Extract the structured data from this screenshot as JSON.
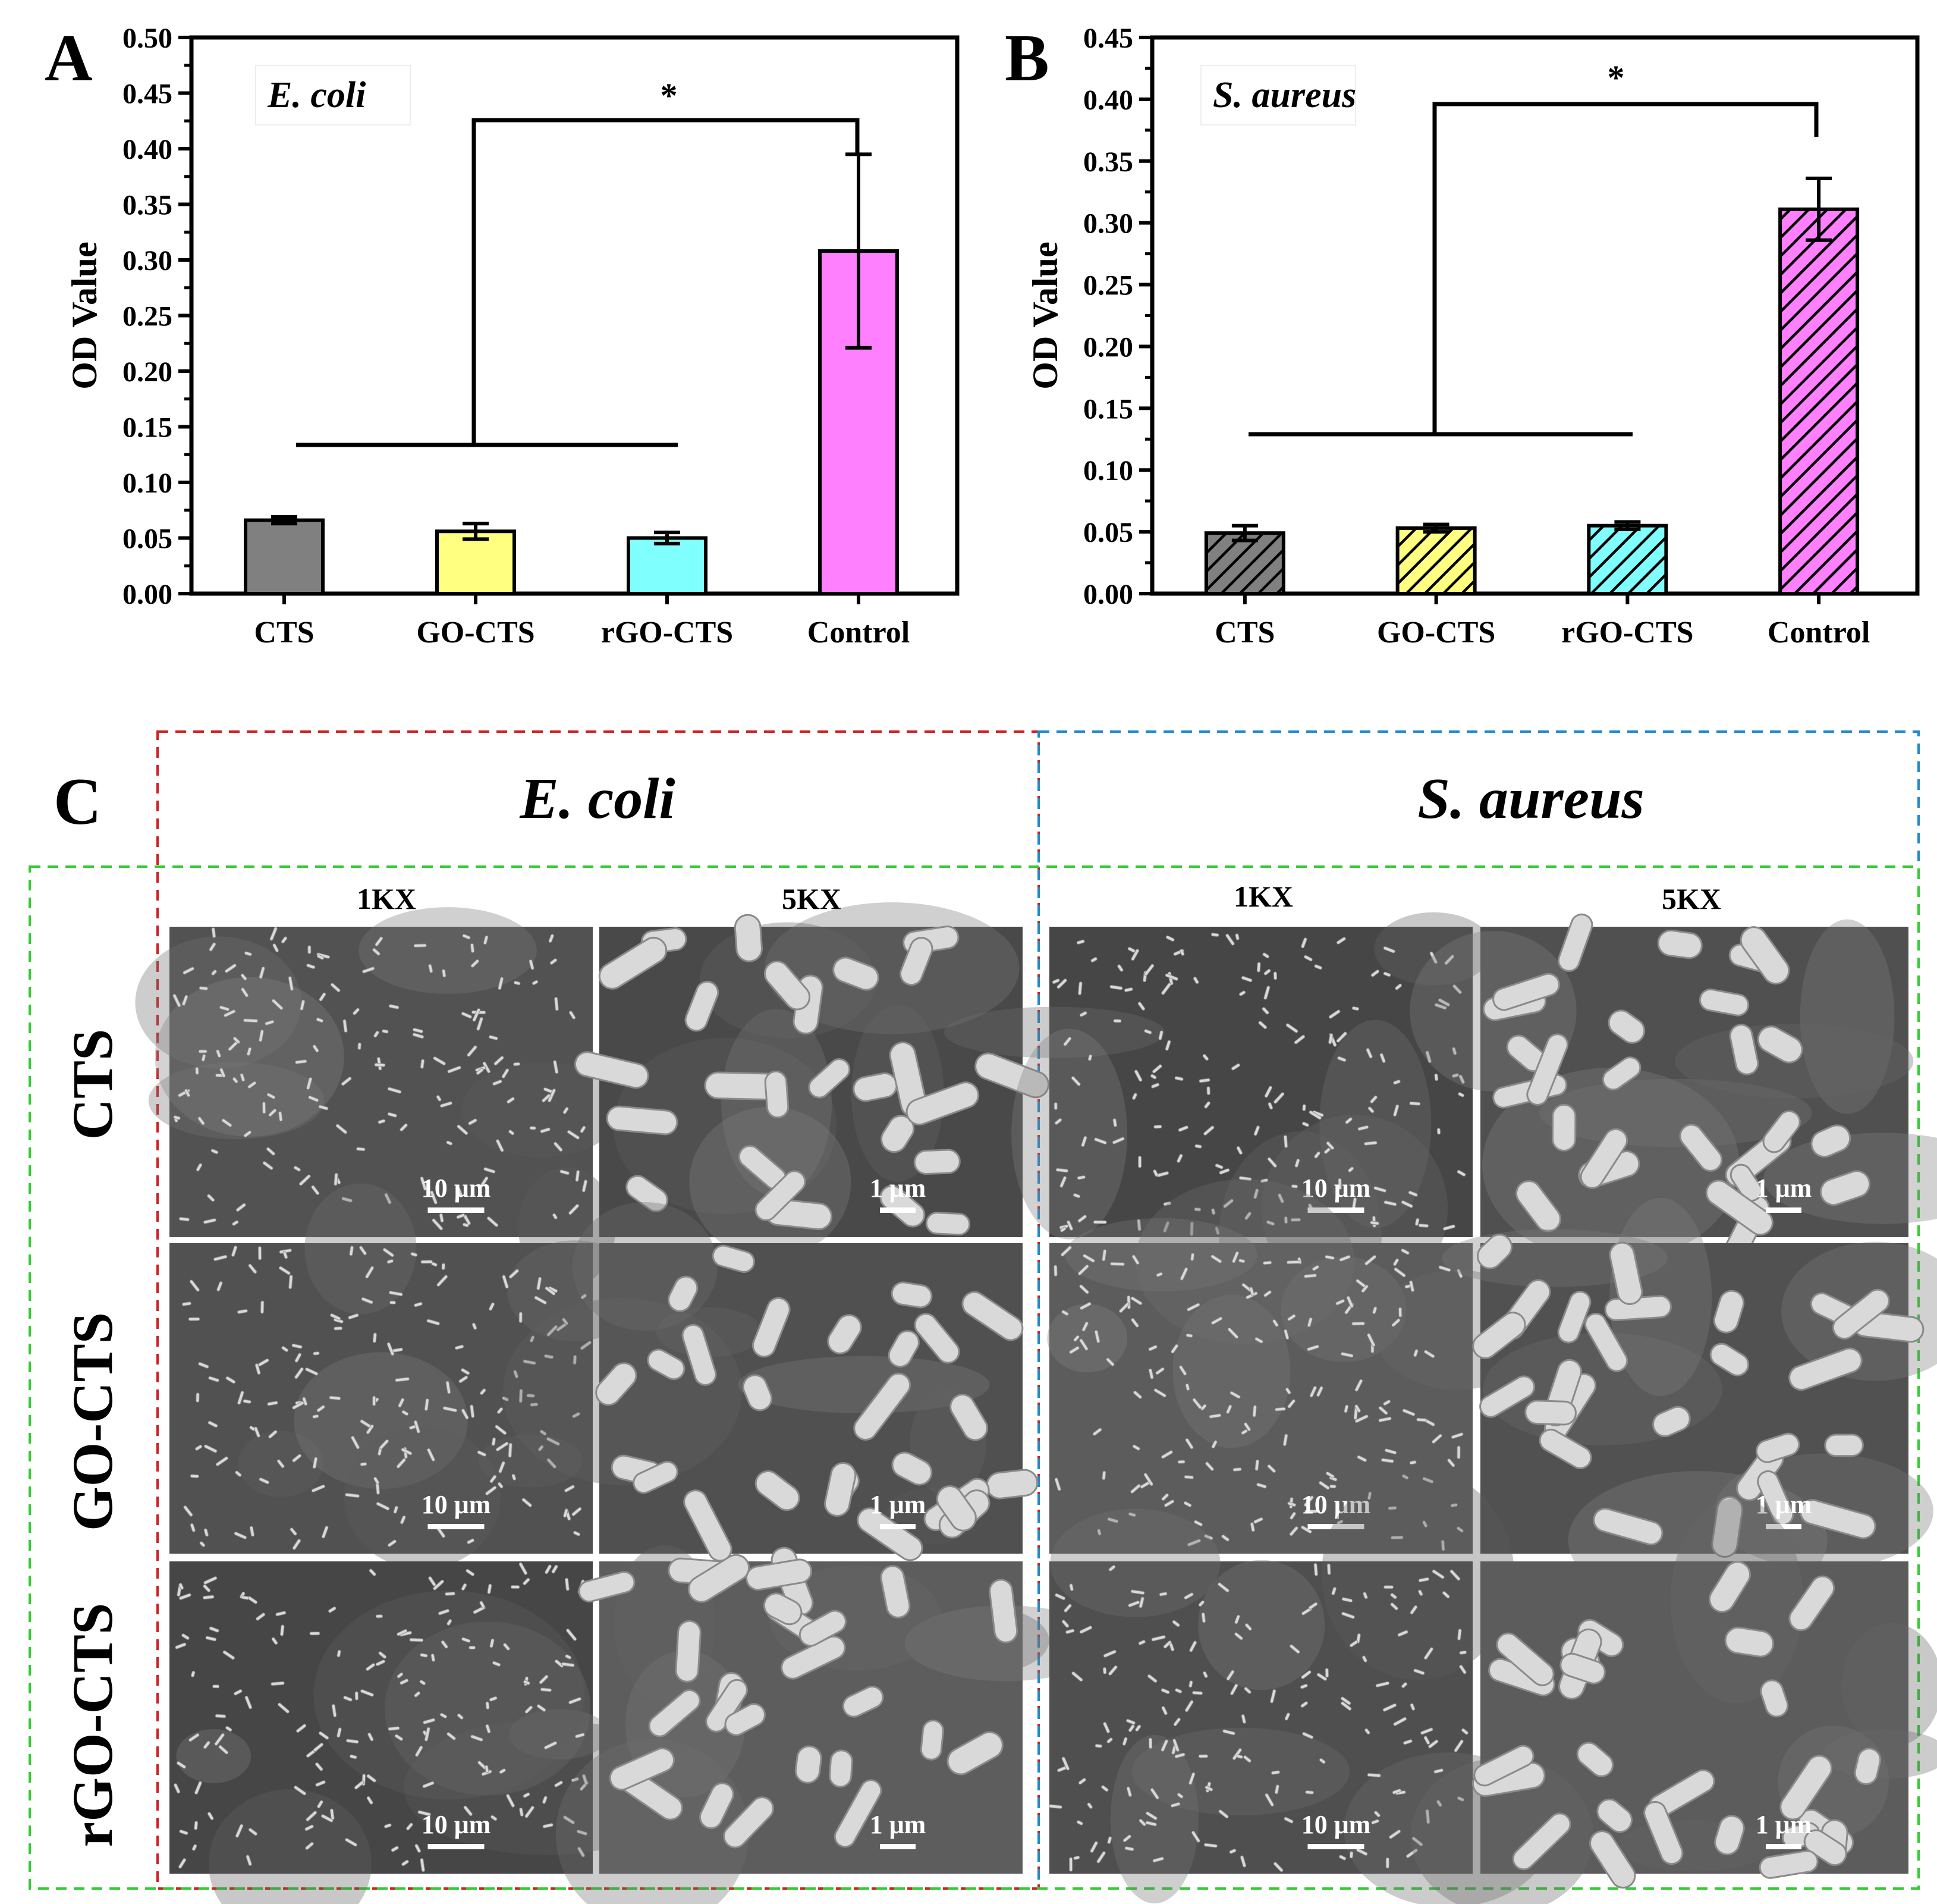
{
  "colors": {
    "CTS": "#808080",
    "GO-CTS": "#ffff80",
    "rGO-CTS": "#80ffff",
    "Control": "#ff80ff",
    "ecoli_box": "#cc2222",
    "saureus_box": "#2288cc",
    "row_box": "#33cc33"
  },
  "chart_data": [
    {
      "panel": "A",
      "type": "bar",
      "inset_label": "E. coli",
      "ylabel": "OD Value",
      "xlabel": "",
      "ylim": [
        0,
        0.5
      ],
      "yticks": [
        "0.00",
        "0.05",
        "0.10",
        "0.15",
        "0.20",
        "0.25",
        "0.30",
        "0.35",
        "0.40",
        "0.45",
        "0.50"
      ],
      "categories": [
        "CTS",
        "GO-CTS",
        "rGO-CTS",
        "Control"
      ],
      "values": [
        0.066,
        0.056,
        0.05,
        0.308
      ],
      "errors": [
        0.003,
        0.007,
        0.005,
        0.087
      ],
      "pattern": "solid",
      "significance": "*"
    },
    {
      "panel": "B",
      "type": "bar",
      "inset_label": "S. aureus",
      "ylabel": "OD Value",
      "xlabel": "",
      "ylim": [
        0,
        0.45
      ],
      "yticks": [
        "0.00",
        "0.05",
        "0.10",
        "0.15",
        "0.20",
        "0.25",
        "0.30",
        "0.35",
        "0.40",
        "0.45"
      ],
      "categories": [
        "CTS",
        "GO-CTS",
        "rGO-CTS",
        "Control"
      ],
      "values": [
        0.049,
        0.053,
        0.055,
        0.311
      ],
      "errors": [
        0.006,
        0.003,
        0.003,
        0.025
      ],
      "pattern": "hatched",
      "significance": "*"
    }
  ],
  "panelC": {
    "label": "C",
    "groups": [
      "E. coli",
      "S. aureus"
    ],
    "magnifications": [
      "1KX",
      "5KX"
    ],
    "rows": [
      "CTS",
      "GO-CTS",
      "rGO-CTS"
    ],
    "scalebars": [
      "10 μm",
      "1 μm"
    ]
  }
}
